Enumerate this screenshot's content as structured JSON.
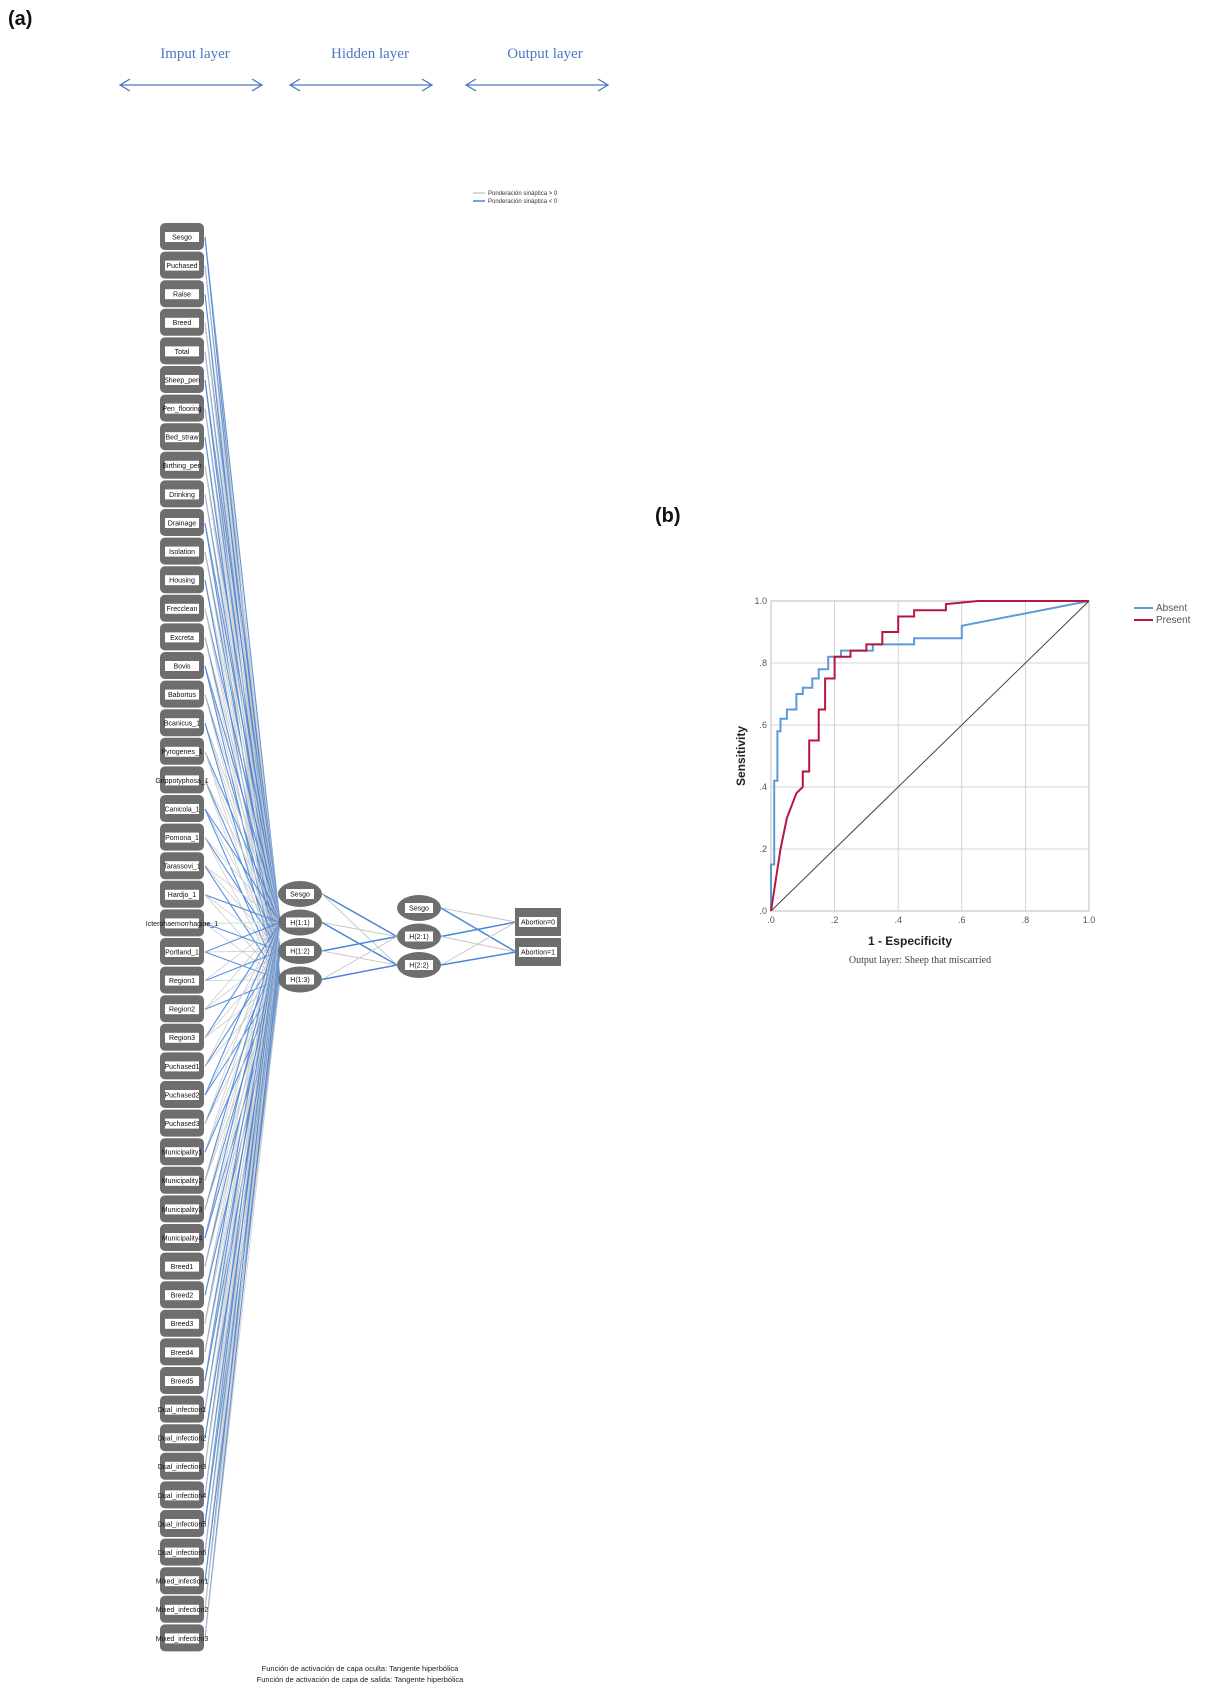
{
  "panels": {
    "a": "(a)",
    "b": "(b)"
  },
  "colors": {
    "positive_weight": "#c8c8c8",
    "negative_weight": "#4a86d8",
    "node_fill": "#6e6e6e",
    "layer_title": "#4a78c2",
    "roc_absent": "#5b9bd5",
    "roc_present": "#b5173f"
  },
  "layer_titles": [
    "Imput layer",
    "Hidden layer",
    "Output layer"
  ],
  "weight_legend": [
    "Ponderación sináptica > 0",
    "Ponderación sináptica < 0"
  ],
  "input_nodes": [
    "Sesgo",
    "Puchased",
    "Raise",
    "Breed",
    "Total",
    "Sheep_pen",
    "Pen_flooring",
    "Bed_straw",
    "Birthing_pen",
    "Drinking",
    "Drainage",
    "Isolation",
    "Housing",
    "Frecclean",
    "Excreta",
    "Bovis",
    "Babortus",
    "Bcanicus_1",
    "Pyrogenes_1",
    "Grippotyphosa_1",
    "Canicola_1",
    "Pomona_1",
    "Tarassovi_1",
    "Hardjo_1",
    "Icterohaemorrhagiae_1",
    "Portland_1",
    "Region1",
    "Region2",
    "Region3",
    "Puchased1",
    "Puchased2",
    "Puchased3",
    "Municipality1",
    "Municipality2",
    "Municipality3",
    "Municipality4",
    "Breed1",
    "Breed2",
    "Breed3",
    "Breed4",
    "Breed5",
    "Dual_infection1",
    "Dual_infection2",
    "Dual_infection3",
    "Dual_infection4",
    "Dual_infection5",
    "Dual_infection6",
    "Mixed_infection1",
    "Mixed_infection2",
    "Mixed_infection3"
  ],
  "hidden1_nodes": [
    "Sesgo",
    "H(1:1)",
    "H(1:2)",
    "H(1:3)"
  ],
  "hidden2_nodes": [
    "Sesgo",
    "H(2:1)",
    "H(2:2)"
  ],
  "output_nodes": [
    "Abortion=0",
    "Abortion=1"
  ],
  "footer": [
    "Función de activación de capa oculta: Tangente hiperbólica",
    "Función de activación de capa de salida: Tangente hiperbólica"
  ],
  "roc": {
    "xlabel": "1 - Especificity",
    "ylabel": "Sensitivity",
    "caption": "Output layer: Sheep that miscarried",
    "x_ticks": [
      ".0",
      ".2",
      ".4",
      ".6",
      ".8",
      "1.0"
    ],
    "y_ticks": [
      ".0",
      ".2",
      ".4",
      ".6",
      ".8",
      "1.0"
    ]
  },
  "chart_data": {
    "type": "line",
    "title": "",
    "xlabel": "1 - Especificity",
    "ylabel": "Sensitivity",
    "xlim": [
      0,
      1
    ],
    "ylim": [
      0,
      1
    ],
    "grid": true,
    "legend_position": "right",
    "series": [
      {
        "name": "Absent",
        "color": "#5b9bd5",
        "x": [
          0,
          0,
          0.01,
          0.01,
          0.02,
          0.02,
          0.03,
          0.03,
          0.05,
          0.05,
          0.08,
          0.08,
          0.1,
          0.1,
          0.13,
          0.13,
          0.15,
          0.15,
          0.18,
          0.18,
          0.22,
          0.22,
          0.32,
          0.32,
          0.45,
          0.45,
          0.6,
          0.6,
          1.0
        ],
        "y": [
          0,
          0.15,
          0.15,
          0.42,
          0.42,
          0.58,
          0.58,
          0.62,
          0.62,
          0.65,
          0.65,
          0.7,
          0.7,
          0.72,
          0.72,
          0.75,
          0.75,
          0.78,
          0.78,
          0.82,
          0.82,
          0.84,
          0.84,
          0.86,
          0.86,
          0.88,
          0.88,
          0.92,
          1.0
        ]
      },
      {
        "name": "Present",
        "color": "#b5173f",
        "x": [
          0,
          0.03,
          0.05,
          0.08,
          0.1,
          0.1,
          0.12,
          0.12,
          0.15,
          0.15,
          0.17,
          0.17,
          0.2,
          0.2,
          0.25,
          0.25,
          0.3,
          0.3,
          0.35,
          0.35,
          0.4,
          0.4,
          0.45,
          0.45,
          0.55,
          0.55,
          0.65,
          1.0
        ],
        "y": [
          0,
          0.2,
          0.3,
          0.38,
          0.4,
          0.45,
          0.45,
          0.55,
          0.55,
          0.65,
          0.65,
          0.75,
          0.75,
          0.82,
          0.82,
          0.84,
          0.84,
          0.86,
          0.86,
          0.9,
          0.9,
          0.95,
          0.95,
          0.97,
          0.97,
          0.99,
          1.0,
          1.0
        ]
      },
      {
        "name": "",
        "color": "#444444",
        "x": [
          0,
          1
        ],
        "y": [
          0,
          1
        ]
      }
    ]
  }
}
